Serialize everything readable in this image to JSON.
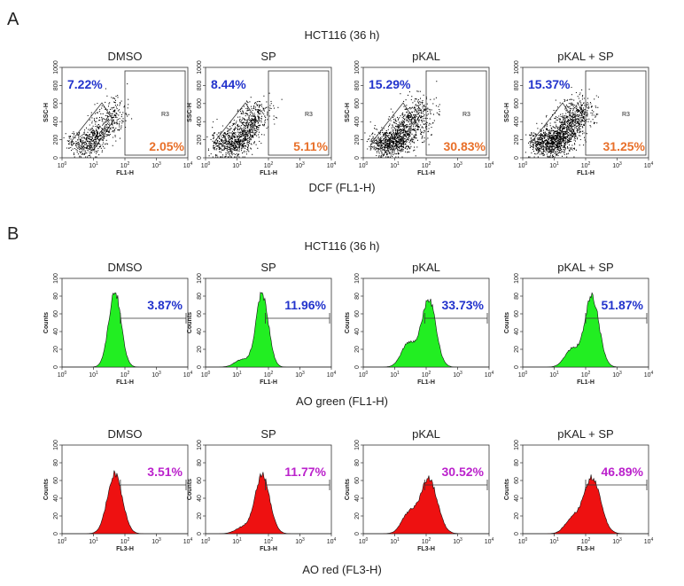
{
  "panel_a": {
    "label": "A",
    "title": "HCT116 (36 h)",
    "axis_label": "DCF (FL1-H)",
    "x_label": "FL1-H",
    "y_label": "SSC-H",
    "gate_label": "R3",
    "plots": [
      {
        "title": "DMSO",
        "left_gate": "7.22%",
        "r3_gate": "2.05%"
      },
      {
        "title": "SP",
        "left_gate": "8.44%",
        "r3_gate": "5.11%"
      },
      {
        "title": "pKAL",
        "left_gate": "15.29%",
        "r3_gate": "30.83%"
      },
      {
        "title": "pKAL + SP",
        "left_gate": "15.37%",
        "r3_gate": "31.25%"
      }
    ]
  },
  "panel_b": {
    "label": "B",
    "title": "HCT116 (36 h)",
    "y_label": "Counts",
    "rows": [
      {
        "axis_label": "AO green (FL1-H)",
        "x_label": "FL1-H",
        "plots": [
          {
            "title": "DMSO",
            "value": "3.87%"
          },
          {
            "title": "SP",
            "value": "11.96%"
          },
          {
            "title": "pKAL",
            "value": "33.73%"
          },
          {
            "title": "pKAL + SP",
            "value": "51.87%"
          }
        ]
      },
      {
        "axis_label": "AO red (FL3-H)",
        "x_label": "FL3-H",
        "plots": [
          {
            "title": "DMSO",
            "value": "3.51%"
          },
          {
            "title": "SP",
            "value": "11.77%"
          },
          {
            "title": "pKAL",
            "value": "30.52%"
          },
          {
            "title": "pKAL + SP",
            "value": "46.89%"
          }
        ]
      }
    ]
  },
  "axes": {
    "x_ticks": [
      {
        "base": "10",
        "exp": "0"
      },
      {
        "base": "10",
        "exp": "1"
      },
      {
        "base": "10",
        "exp": "2"
      },
      {
        "base": "10",
        "exp": "3"
      },
      {
        "base": "10",
        "exp": "4"
      }
    ],
    "scatter_y_ticks": [
      "0",
      "200",
      "400",
      "600",
      "800",
      "1000"
    ],
    "hist_y_ticks": [
      "0",
      "20",
      "40",
      "60",
      "80",
      "100"
    ]
  }
}
